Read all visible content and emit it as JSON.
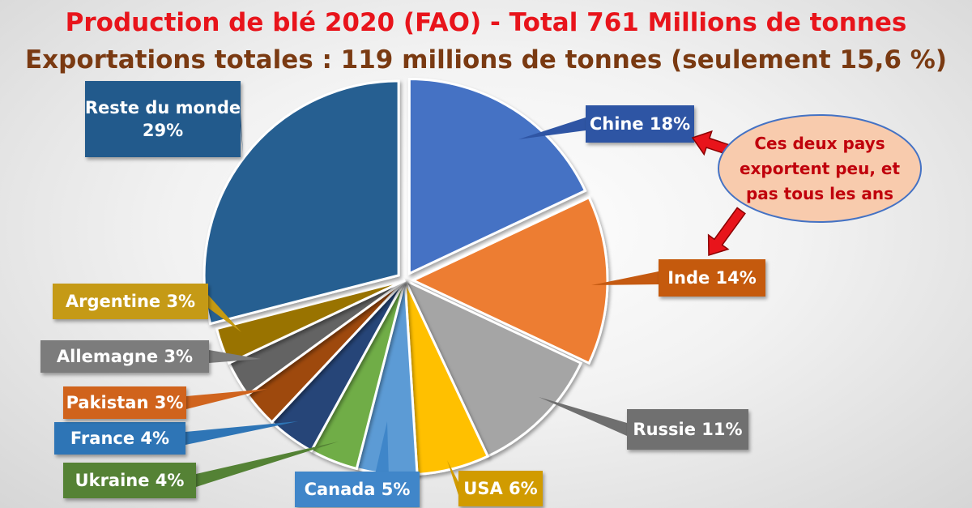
{
  "header": {
    "title": "Production de blé 2020 (FAO) - Total 761 Millions de tonnes",
    "subtitle": "Exportations totales : 119 millions de tonnes (seulement 15,6 %)"
  },
  "chart_data": {
    "type": "pie",
    "title": "Production de blé 2020 (FAO) - Total 761 Millions de tonnes",
    "subtitle": "Exportations totales : 119 millions de tonnes (seulement 15,6 %)",
    "unit": "%",
    "slices": [
      {
        "name": "Chine",
        "value": 18,
        "label": "Chine 18%",
        "color": "#4472c4",
        "label_color": "#2f55a4",
        "exploded": true
      },
      {
        "name": "Inde",
        "value": 14,
        "label": "Inde 14%",
        "color": "#ed7d31",
        "label_color": "#c55a11",
        "exploded": true
      },
      {
        "name": "Russie",
        "value": 11,
        "label": "Russie 11%",
        "color": "#a5a5a5",
        "label_color": "#6f6f6f",
        "exploded": false
      },
      {
        "name": "USA",
        "value": 6,
        "label": "USA 6%",
        "color": "#ffc000",
        "label_color": "#d19b00",
        "exploded": false
      },
      {
        "name": "Canada",
        "value": 5,
        "label": "Canada 5%",
        "color": "#5b9bd5",
        "label_color": "#3f86c9",
        "exploded": false
      },
      {
        "name": "Ukraine",
        "value": 4,
        "label": "Ukraine 4%",
        "color": "#70ad47",
        "label_color": "#548235",
        "exploded": false
      },
      {
        "name": "France",
        "value": 4,
        "label": "France 4%",
        "color": "#264478",
        "label_color": "#2e75b6",
        "exploded": false
      },
      {
        "name": "Pakistan",
        "value": 3,
        "label": "Pakistan 3%",
        "color": "#9e480e",
        "label_color": "#d0641e",
        "exploded": false
      },
      {
        "name": "Allemagne",
        "value": 3,
        "label": "Allemagne 3%",
        "color": "#636363",
        "label_color": "#7b7b7b",
        "exploded": false
      },
      {
        "name": "Argentine",
        "value": 3,
        "label": "Argentine 3%",
        "color": "#997300",
        "label_color": "#c59a12",
        "exploded": false
      },
      {
        "name": "Reste du monde",
        "value": 29,
        "label": "Reste du monde\n29%",
        "color": "#255e91",
        "label_color": "#245a8c",
        "exploded": true
      }
    ],
    "annotation": {
      "text": [
        "Ces deux pays",
        "exportent peu, et",
        "pas tous les ans"
      ],
      "points_to": [
        "Chine",
        "Inde"
      ],
      "fill": "#f8cbad",
      "text_color": "#c0000c",
      "arrow_color": "#e8141b"
    }
  }
}
